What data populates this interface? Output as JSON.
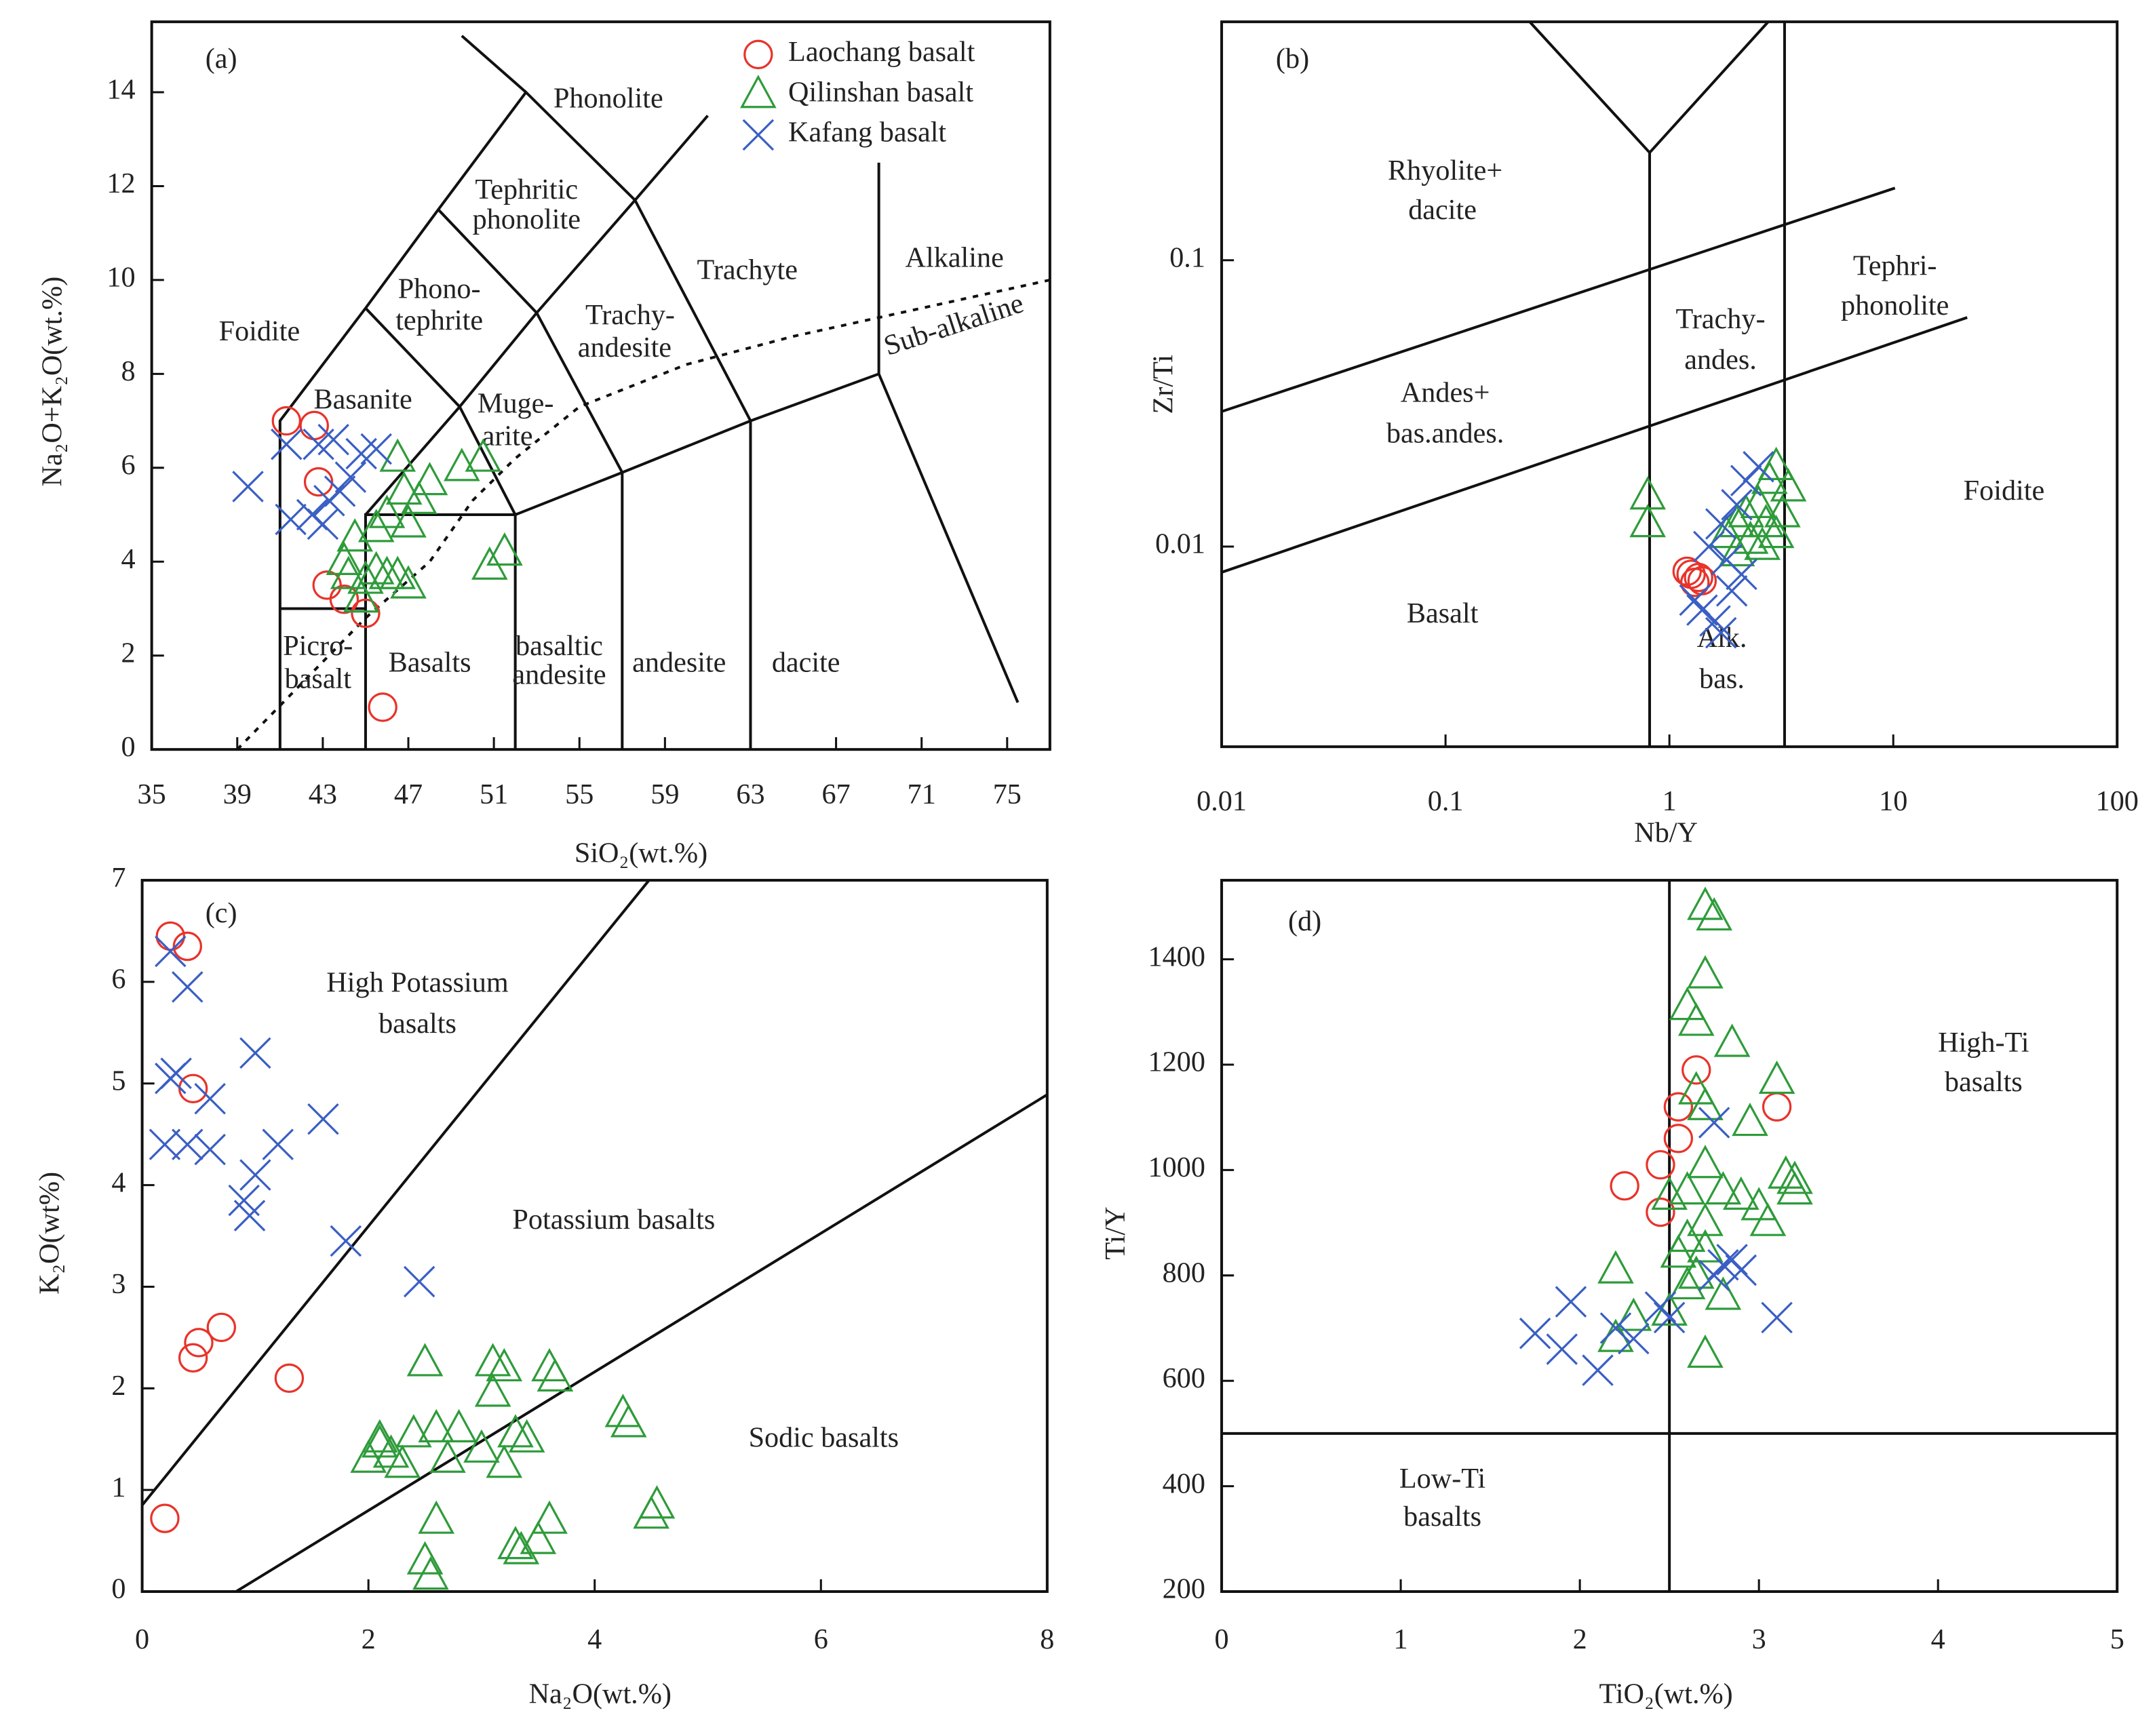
{
  "chart_data": [
    {
      "type": "scatter",
      "panel": "(a)",
      "x_label": "SiO₂(wt.%)",
      "y_label": "Na₂O+K₂O(wt.%)",
      "xlim": [
        35,
        77
      ],
      "ylim": [
        0,
        15.5
      ],
      "xticks": [
        35,
        39,
        43,
        47,
        51,
        55,
        59,
        63,
        67,
        71,
        75
      ],
      "yticks": [
        0,
        2,
        4,
        6,
        8,
        10,
        12,
        14
      ],
      "legend": "top-right",
      "annotations": [
        "Phonolite",
        "Tephritic",
        "phonolite",
        "Phono-",
        "tephrite",
        "Foidite",
        "Basanite",
        "Muge-",
        "arite",
        "Trachy-",
        "andesite",
        "Trachyte",
        "Alkaline",
        "Sub-alkaline",
        "Picro-",
        "basalt",
        "Basalts",
        "basaltic",
        "andesite",
        "andesite",
        "dacite"
      ],
      "series": [
        {
          "name": "Laochang basalt",
          "marker": "circle",
          "color": "#e8332a",
          "x": [
            41.3,
            42.6,
            42.8,
            43.2,
            44,
            45,
            45.8
          ],
          "values": [
            7.0,
            6.9,
            5.7,
            3.5,
            3.2,
            2.9,
            0.9
          ]
        },
        {
          "name": "Qilinshan basalt",
          "marker": "triangle",
          "color": "#2e9b3a",
          "x": [
            46.5,
            48,
            47.5,
            49.5,
            50.5,
            46,
            47,
            45.5,
            44.5,
            44,
            44.2,
            45,
            45.5,
            46,
            46.5,
            47,
            51.5,
            50.8,
            44.8,
            46.8
          ],
          "values": [
            6.2,
            5.7,
            5.3,
            6.0,
            6.2,
            5.0,
            4.8,
            4.7,
            4.5,
            4.0,
            3.7,
            3.6,
            3.8,
            3.7,
            3.7,
            3.5,
            4.2,
            3.9,
            3.2,
            5.5
          ]
        },
        {
          "name": "Kafang basalt",
          "marker": "x",
          "color": "#3a5fc4",
          "x": [
            39.5,
            41.3,
            42.8,
            43.5,
            44.3,
            44.8,
            45.5,
            43.3,
            42.5,
            43.8,
            41.5,
            43
          ],
          "values": [
            5.6,
            6.5,
            6.5,
            6.6,
            5.8,
            6.3,
            6.4,
            5.3,
            5.0,
            5.5,
            4.9,
            4.8
          ]
        }
      ]
    },
    {
      "type": "scatter",
      "panel": "(b)",
      "x_label": "Nb/Y",
      "y_label": "Zr/Ti",
      "xlim": [
        0.01,
        100
      ],
      "ylim": [
        0.002,
        0.68
      ],
      "xscale": "log",
      "yscale": "log",
      "xticks": [
        0.01,
        0.1,
        1,
        10,
        100
      ],
      "yticks": [
        0.01,
        0.1
      ],
      "annotations": [
        "Rhyolite+",
        "dacite",
        "Trachy-",
        "andes.",
        "Tephri-",
        "phonolite",
        "Andes+",
        "bas.andes.",
        "Foidite",
        "Basalt",
        "Alk.",
        "bas."
      ],
      "series": [
        {
          "marker": "circle",
          "color": "#e8332a",
          "x": [
            1.25,
            1.35,
            1.3,
            1.4,
            1.2
          ],
          "values": [
            0.008,
            0.0078,
            0.0075,
            0.0076,
            0.0082
          ]
        },
        {
          "marker": "triangle",
          "color": "#2e9b3a",
          "x": [
            0.8,
            0.8,
            1.8,
            2,
            2.2,
            2.5,
            2.8,
            3,
            3.4,
            2.6,
            2.3,
            3,
            2,
            2.7,
            3.2
          ],
          "values": [
            0.015,
            0.012,
            0.011,
            0.012,
            0.013,
            0.014,
            0.017,
            0.019,
            0.016,
            0.01,
            0.0105,
            0.011,
            0.0095,
            0.012,
            0.013
          ]
        },
        {
          "marker": "x",
          "color": "#3a5fc4",
          "x": [
            1.5,
            1.7,
            2,
            2.2,
            2.5,
            1.3,
            1.4,
            1.6,
            1.7,
            1.9,
            2.1,
            1.8
          ],
          "values": [
            0.01,
            0.012,
            0.014,
            0.017,
            0.019,
            0.0065,
            0.006,
            0.0055,
            0.005,
            0.007,
            0.008,
            0.009
          ]
        }
      ]
    },
    {
      "type": "scatter",
      "panel": "(c)",
      "x_label": "Na₂O(wt.%)",
      "y_label": "K₂O(wt%)",
      "xlim": [
        0,
        8
      ],
      "ylim": [
        0,
        7
      ],
      "xticks": [
        0,
        2,
        4,
        6,
        8
      ],
      "yticks": [
        0,
        1,
        2,
        3,
        4,
        5,
        6,
        7
      ],
      "annotations": [
        "High Potassium",
        "basalts",
        "Potassium basalts",
        "Sodic basalts"
      ],
      "series": [
        {
          "marker": "circle",
          "color": "#e8332a",
          "x": [
            0.25,
            0.4,
            0.45,
            0.5,
            0.45,
            0.7,
            1.3,
            0.2
          ],
          "values": [
            6.45,
            6.35,
            4.95,
            2.45,
            2.3,
            2.6,
            2.1,
            0.72
          ]
        },
        {
          "marker": "triangle",
          "color": "#2e9b3a",
          "x": [
            2.1,
            2.0,
            2.2,
            2.3,
            2.4,
            2.5,
            2.6,
            2.8,
            2.7,
            3.0,
            3.1,
            3.1,
            3.2,
            3.2,
            3.3,
            3.4,
            3.6,
            3.65,
            3.3,
            3.35,
            3.5,
            3.6,
            4.25,
            4.3,
            4.55,
            4.5,
            2.6,
            2.5,
            2.55,
            2.1
          ],
          "values": [
            1.5,
            1.3,
            1.35,
            1.25,
            1.55,
            2.25,
            1.6,
            1.6,
            1.3,
            1.4,
            2.25,
            1.95,
            2.2,
            1.25,
            1.55,
            1.5,
            2.2,
            2.1,
            0.45,
            0.4,
            0.5,
            0.7,
            1.75,
            1.65,
            0.85,
            0.75,
            0.7,
            0.3,
            0.15,
            1.45
          ]
        },
        {
          "marker": "x",
          "color": "#3a5fc4",
          "x": [
            0.25,
            0.4,
            0.25,
            0.3,
            0.6,
            1.0,
            0.2,
            0.4,
            0.6,
            1.0,
            1.2,
            1.6,
            0.95,
            0.9,
            1.8,
            2.45
          ],
          "values": [
            6.3,
            5.95,
            5.05,
            5.1,
            4.85,
            5.3,
            4.4,
            4.4,
            4.35,
            4.1,
            4.4,
            4.65,
            3.7,
            3.85,
            3.45,
            3.05
          ]
        }
      ]
    },
    {
      "type": "scatter",
      "panel": "(d)",
      "x_label": "TiO₂(wt.%)",
      "y_label": "Ti/Y",
      "xlim": [
        0,
        5
      ],
      "ylim": [
        200,
        1550
      ],
      "xticks": [
        0,
        1,
        2,
        3,
        4,
        5
      ],
      "yticks": [
        200,
        400,
        600,
        800,
        1000,
        1200,
        1400
      ],
      "annotations": [
        "High-Ti",
        "basalts",
        "Low-Ti",
        "basalts"
      ],
      "series": [
        {
          "marker": "circle",
          "color": "#e8332a",
          "x": [
            2.65,
            2.55,
            2.55,
            2.45,
            2.25,
            2.45,
            3.1
          ],
          "values": [
            1190,
            1120,
            1060,
            1010,
            970,
            920,
            1120
          ]
        },
        {
          "marker": "triangle",
          "color": "#2e9b3a",
          "x": [
            2.7,
            2.75,
            2.7,
            2.6,
            2.65,
            2.85,
            3.1,
            2.65,
            2.7,
            2.95,
            2.7,
            2.8,
            2.9,
            3.0,
            3.05,
            3.15,
            3.2,
            3.2,
            2.5,
            2.6,
            2.7,
            2.6,
            2.7,
            2.55,
            2.65,
            2.6,
            2.8,
            2.2,
            2.3,
            2.5,
            2.7,
            2.2
          ],
          "values": [
            1500,
            1480,
            1370,
            1310,
            1280,
            1240,
            1170,
            1150,
            1120,
            1090,
            1010,
            960,
            950,
            930,
            900,
            990,
            980,
            960,
            950,
            960,
            900,
            870,
            850,
            840,
            800,
            780,
            760,
            810,
            720,
            730,
            650,
            680
          ]
        },
        {
          "marker": "x",
          "color": "#3a5fc4",
          "x": [
            1.75,
            1.95,
            1.9,
            2.1,
            2.2,
            2.3,
            2.45,
            2.5,
            2.75,
            2.8,
            2.85,
            2.9,
            2.75,
            3.1
          ],
          "values": [
            690,
            750,
            660,
            620,
            700,
            680,
            740,
            720,
            1090,
            820,
            830,
            810,
            800,
            720
          ]
        }
      ]
    }
  ]
}
